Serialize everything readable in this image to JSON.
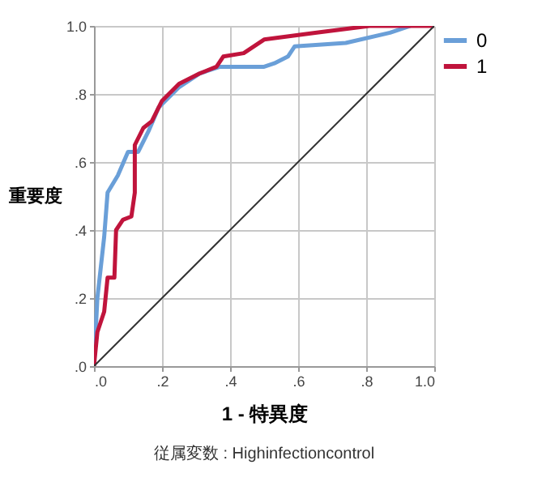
{
  "chart_data": {
    "type": "line",
    "xlabel": "1 - 特異度",
    "ylabel": "重要度",
    "annotations": [
      "従属変数 : Highinfectioncontrol"
    ],
    "xlim": [
      0,
      1
    ],
    "ylim": [
      0,
      1
    ],
    "xticks": [
      {
        "value": 0,
        "label": ".0"
      },
      {
        "value": 0.2,
        "label": ".2"
      },
      {
        "value": 0.4,
        "label": ".4"
      },
      {
        "value": 0.6,
        "label": ".6"
      },
      {
        "value": 0.8,
        "label": ".8"
      },
      {
        "value": 1,
        "label": "1.0"
      }
    ],
    "yticks": [
      {
        "value": 0,
        "label": ".0"
      },
      {
        "value": 0.2,
        "label": ".2"
      },
      {
        "value": 0.4,
        "label": ".4"
      },
      {
        "value": 0.6,
        "label": ".6"
      },
      {
        "value": 0.8,
        "label": ".8"
      },
      {
        "value": 1,
        "label": "1.0"
      }
    ],
    "grid": true,
    "legend": "top right",
    "line_style": "solid",
    "marker": "none",
    "series": [
      {
        "name": "0",
        "color": "#6a9fd8",
        "x": [
          0,
          0.01,
          0.03,
          0.04,
          0.07,
          0.1,
          0.13,
          0.16,
          0.19,
          0.25,
          0.31,
          0.37,
          0.5,
          0.53,
          0.57,
          0.59,
          0.74,
          0.87,
          0.93
        ],
        "values": [
          0,
          0.2,
          0.38,
          0.51,
          0.56,
          0.63,
          0.63,
          0.69,
          0.76,
          0.82,
          0.86,
          0.88,
          0.88,
          0.89,
          0.91,
          0.94,
          0.95,
          0.98,
          1
        ]
      },
      {
        "name": "1",
        "color": "#c0143c",
        "x": [
          0,
          0.01,
          0.03,
          0.04,
          0.06,
          0.065,
          0.085,
          0.11,
          0.12,
          0.12,
          0.145,
          0.17,
          0.2,
          0.25,
          0.31,
          0.36,
          0.38,
          0.44,
          0.5,
          0.65,
          0.81,
          1
        ],
        "values": [
          0,
          0.1,
          0.16,
          0.26,
          0.26,
          0.4,
          0.43,
          0.44,
          0.51,
          0.65,
          0.7,
          0.72,
          0.78,
          0.83,
          0.86,
          0.88,
          0.91,
          0.92,
          0.96,
          0.98,
          1,
          1
        ]
      },
      {
        "type": "line",
        "color": "#333333",
        "x": [
          0,
          1
        ],
        "values": [
          0,
          1
        ]
      }
    ]
  }
}
